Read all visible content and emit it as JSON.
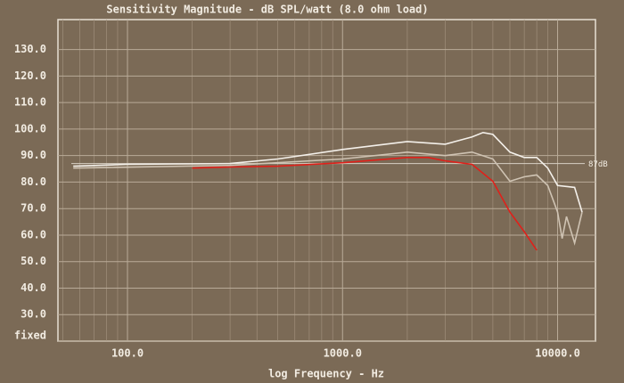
{
  "chart_data": {
    "type": "line",
    "title": "Sensitivity Magnitude - dB SPL/watt (8.0 ohm load)",
    "x_label": "log Frequency - Hz",
    "log_x": true,
    "grid": true,
    "xlim": [
      47.5,
      15000
    ],
    "xticks": [
      {
        "value": 100,
        "label": "100.0"
      },
      {
        "value": 1000,
        "label": "1000.0"
      },
      {
        "value": 10000,
        "label": "10000.0"
      }
    ],
    "x_minor_ticks": [
      50,
      60,
      70,
      80,
      90,
      200,
      300,
      400,
      500,
      600,
      700,
      800,
      900,
      2000,
      3000,
      4000,
      5000,
      6000,
      7000,
      8000,
      9000
    ],
    "ylim": [
      20,
      141.3
    ],
    "yticks": [
      {
        "value": 20,
        "label": "fixed"
      },
      {
        "value": 30,
        "label": "30.0"
      },
      {
        "value": 40,
        "label": "40.0"
      },
      {
        "value": 50,
        "label": "50.0"
      },
      {
        "value": 60,
        "label": "60.0"
      },
      {
        "value": 70,
        "label": "70.0"
      },
      {
        "value": 80,
        "label": "80.0"
      },
      {
        "value": 90,
        "label": "90.0"
      },
      {
        "value": 100,
        "label": "100.0"
      },
      {
        "value": 110,
        "label": "110.0"
      },
      {
        "value": 120,
        "label": "120.0"
      },
      {
        "value": 130,
        "label": "130.0"
      }
    ],
    "reference": {
      "value": 87,
      "label": "87dB",
      "color": "#d8d0c4"
    },
    "series": [
      {
        "color": "#f4f0ea",
        "x": [
          56,
          100,
          300,
          500,
          1000,
          2000,
          3000,
          4000,
          4500,
          5000,
          6000,
          7000,
          8000,
          9000,
          10000,
          12000,
          13000
        ],
        "values": [
          86,
          86.7,
          87,
          88.7,
          92.3,
          95.3,
          94.3,
          97,
          98.7,
          98,
          91.3,
          89.3,
          89.3,
          85.3,
          78.7,
          78,
          68.7
        ]
      },
      {
        "color": "#cfc3b3",
        "x": [
          56,
          300,
          1000,
          2000,
          3000,
          4000,
          5000,
          6000,
          7000,
          8000,
          9000,
          10000,
          10500,
          11000,
          12000,
          13000
        ],
        "values": [
          85.3,
          86.3,
          88.7,
          91.3,
          90,
          91.3,
          88.7,
          80.3,
          82,
          82.7,
          78.7,
          68.7,
          58.7,
          67,
          57,
          68.7
        ]
      },
      {
        "color": "#e0201a",
        "x": [
          200,
          300,
          500,
          1000,
          2000,
          2500,
          3000,
          4000,
          5000,
          6000,
          7000,
          8000
        ],
        "values": [
          85.3,
          85.7,
          86,
          87.3,
          89.3,
          89.3,
          88,
          86.7,
          80.3,
          68.7,
          61.3,
          54.3
        ]
      }
    ]
  }
}
